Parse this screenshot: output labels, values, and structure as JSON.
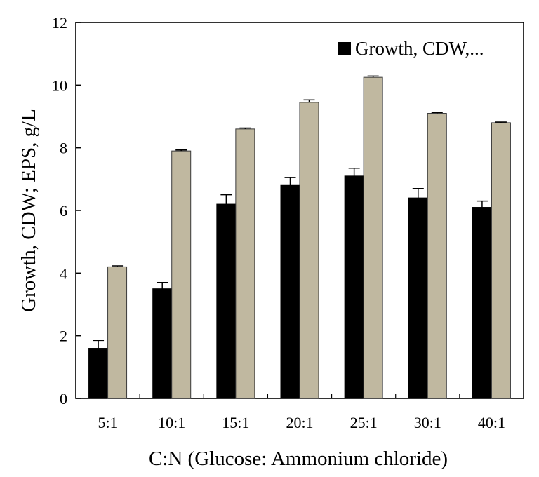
{
  "chart_data": {
    "type": "bar",
    "categories": [
      "5:1",
      "10:1",
      "15:1",
      "20:1",
      "25:1",
      "30:1",
      "40:1"
    ],
    "series": [
      {
        "name": "Growth, CDW,...",
        "color": "#000000",
        "values": [
          1.6,
          3.5,
          6.2,
          6.8,
          7.1,
          6.4,
          6.1
        ],
        "errors": [
          0.25,
          0.2,
          0.3,
          0.25,
          0.25,
          0.3,
          0.2
        ]
      },
      {
        "name": "",
        "color": "#c0b8a0",
        "values": [
          4.2,
          7.9,
          8.6,
          9.45,
          10.25,
          9.1,
          8.8
        ],
        "errors": [
          0.03,
          0.03,
          0.03,
          0.08,
          0.04,
          0.03,
          0.02
        ]
      }
    ],
    "xlabel": "C:N (Glucose: Ammonium chloride)",
    "ylabel": "Growth, CDW; EPS, g/L",
    "ylim": [
      0,
      12
    ],
    "yticks": [
      "0",
      "2",
      "4",
      "6",
      "8",
      "10",
      "12"
    ],
    "grid": false,
    "legend_position": "top-right"
  }
}
